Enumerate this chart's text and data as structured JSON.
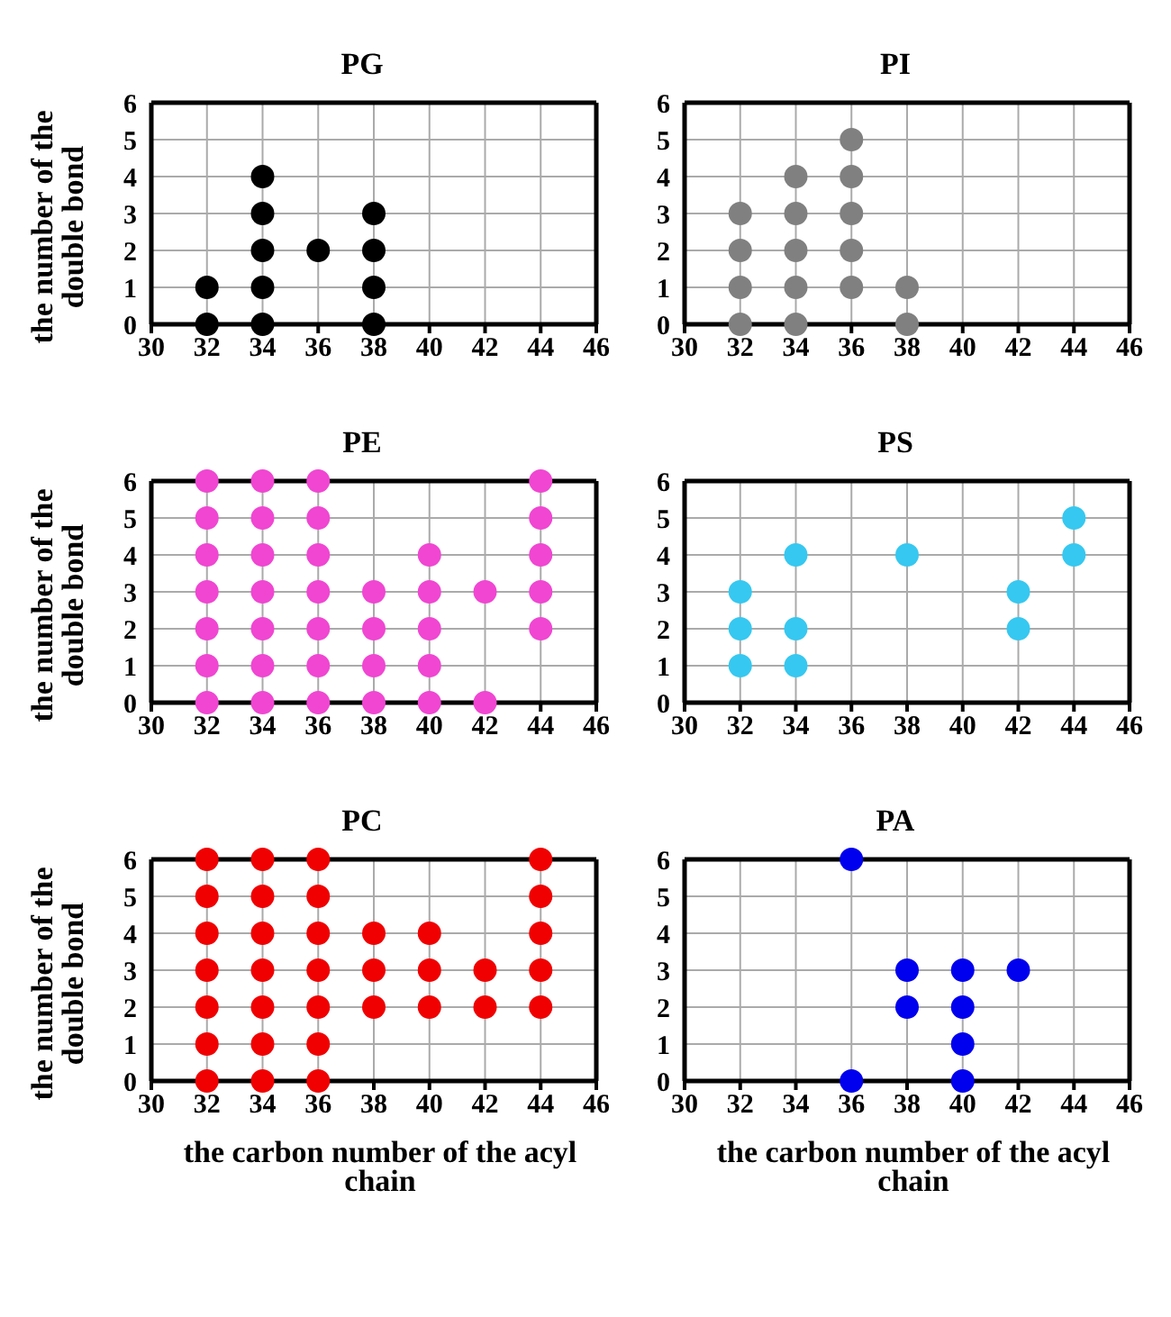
{
  "chart_data": [
    {
      "type": "scatter",
      "title": "PG",
      "ylabel": "the number of the double bond",
      "x": [
        32,
        32,
        34,
        34,
        34,
        34,
        34,
        36,
        38,
        38,
        38,
        38
      ],
      "values": [
        0,
        1,
        0,
        1,
        2,
        3,
        4,
        2,
        0,
        1,
        2,
        3
      ],
      "color": "#000000",
      "xlim": [
        30,
        46
      ],
      "xticks": [
        30,
        32,
        34,
        36,
        38,
        40,
        42,
        44,
        46
      ],
      "ylim": [
        0,
        6
      ],
      "yticks": [
        0,
        1,
        2,
        3,
        4,
        5,
        6
      ],
      "grid": true,
      "marker": "circle"
    },
    {
      "type": "scatter",
      "title": "PI",
      "x": [
        32,
        32,
        32,
        32,
        34,
        34,
        34,
        34,
        34,
        36,
        36,
        36,
        36,
        36,
        38,
        38
      ],
      "values": [
        0,
        1,
        2,
        3,
        0,
        1,
        2,
        3,
        4,
        1,
        2,
        3,
        4,
        5,
        0,
        1
      ],
      "color": "#808080",
      "xlim": [
        30,
        46
      ],
      "xticks": [
        30,
        32,
        34,
        36,
        38,
        40,
        42,
        44,
        46
      ],
      "ylim": [
        0,
        6
      ],
      "yticks": [
        0,
        1,
        2,
        3,
        4,
        5,
        6
      ],
      "grid": true,
      "marker": "circle"
    },
    {
      "type": "scatter",
      "title": "PE",
      "ylabel": "the number of the double bond",
      "x": [
        32,
        32,
        32,
        32,
        32,
        32,
        32,
        34,
        34,
        34,
        34,
        34,
        34,
        34,
        36,
        36,
        36,
        36,
        36,
        36,
        36,
        38,
        38,
        38,
        38,
        40,
        40,
        40,
        40,
        40,
        42,
        42,
        44,
        44,
        44,
        44,
        44
      ],
      "values": [
        0,
        1,
        2,
        3,
        4,
        5,
        6,
        0,
        1,
        2,
        3,
        4,
        5,
        6,
        0,
        1,
        2,
        3,
        4,
        5,
        6,
        0,
        1,
        2,
        3,
        0,
        1,
        2,
        3,
        4,
        0,
        3,
        2,
        3,
        4,
        5,
        6
      ],
      "color": "#f046d2",
      "xlim": [
        30,
        46
      ],
      "xticks": [
        30,
        32,
        34,
        36,
        38,
        40,
        42,
        44,
        46
      ],
      "ylim": [
        0,
        6
      ],
      "yticks": [
        0,
        1,
        2,
        3,
        4,
        5,
        6
      ],
      "grid": true,
      "marker": "circle"
    },
    {
      "type": "scatter",
      "title": "PS",
      "x": [
        32,
        32,
        32,
        34,
        34,
        34,
        38,
        42,
        42,
        44,
        44
      ],
      "values": [
        1,
        2,
        3,
        1,
        2,
        4,
        4,
        2,
        3,
        4,
        5
      ],
      "color": "#36c8f0",
      "xlim": [
        30,
        46
      ],
      "xticks": [
        30,
        32,
        34,
        36,
        38,
        40,
        42,
        44,
        46
      ],
      "ylim": [
        0,
        6
      ],
      "yticks": [
        0,
        1,
        2,
        3,
        4,
        5,
        6
      ],
      "grid": true,
      "marker": "circle"
    },
    {
      "type": "scatter",
      "title": "PC",
      "ylabel": "the number of the double bond",
      "xlabel": "the carbon number of the acyl chain",
      "x": [
        32,
        32,
        32,
        32,
        32,
        32,
        32,
        34,
        34,
        34,
        34,
        34,
        34,
        34,
        36,
        36,
        36,
        36,
        36,
        36,
        36,
        38,
        38,
        38,
        40,
        40,
        40,
        42,
        42,
        44,
        44,
        44,
        44,
        44
      ],
      "values": [
        0,
        1,
        2,
        3,
        4,
        5,
        6,
        0,
        1,
        2,
        3,
        4,
        5,
        6,
        0,
        1,
        2,
        3,
        4,
        5,
        6,
        2,
        3,
        4,
        2,
        3,
        4,
        2,
        3,
        2,
        3,
        4,
        5,
        6
      ],
      "color": "#f00000",
      "xlim": [
        30,
        46
      ],
      "xticks": [
        30,
        32,
        34,
        36,
        38,
        40,
        42,
        44,
        46
      ],
      "ylim": [
        0,
        6
      ],
      "yticks": [
        0,
        1,
        2,
        3,
        4,
        5,
        6
      ],
      "grid": true,
      "marker": "circle"
    },
    {
      "type": "scatter",
      "title": "PA",
      "xlabel": "the carbon number of the acyl chain",
      "x": [
        36,
        36,
        38,
        38,
        40,
        40,
        40,
        40,
        42
      ],
      "values": [
        0,
        6,
        2,
        3,
        0,
        1,
        2,
        3,
        3
      ],
      "color": "#0000ee",
      "xlim": [
        30,
        46
      ],
      "xticks": [
        30,
        32,
        34,
        36,
        38,
        40,
        42,
        44,
        46
      ],
      "ylim": [
        0,
        6
      ],
      "yticks": [
        0,
        1,
        2,
        3,
        4,
        5,
        6
      ],
      "grid": true,
      "marker": "circle"
    }
  ]
}
